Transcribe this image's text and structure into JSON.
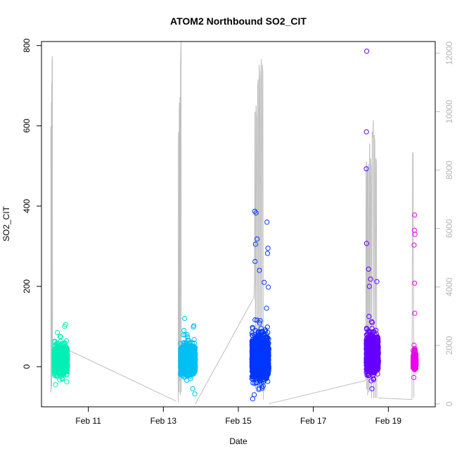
{
  "chart_data": {
    "type": "scatter",
    "title": "ATOM2 Northbound SO2_CIT",
    "xlabel": "Date",
    "ylabel": "SO2_CIT",
    "xlim": [
      "2016-02-09T18:00",
      "2016-02-20T06:00"
    ],
    "ylim": [
      -100,
      810
    ],
    "y2lim": [
      -100,
      12400
    ],
    "x_ticks": [
      {
        "date": "2016-02-11",
        "label": "Feb 11"
      },
      {
        "date": "2016-02-13",
        "label": "Feb 13"
      },
      {
        "date": "2016-02-15",
        "label": "Feb 15"
      },
      {
        "date": "2016-02-17",
        "label": "Feb 17"
      },
      {
        "date": "2016-02-19",
        "label": "Feb 19"
      }
    ],
    "y_ticks": [
      "0",
      "200",
      "400",
      "600",
      "800"
    ],
    "y2_ticks": [
      "0",
      "2000",
      "4000",
      "6000",
      "8000",
      "10000",
      "12000"
    ],
    "grid": false,
    "legend": "none",
    "secondary_series_color": "#bebebe",
    "flights": [
      {
        "start": "2016-02-10T02:10",
        "end": "2016-02-10T10:40",
        "color": "#00f0b5",
        "center": 15,
        "spread": 28,
        "outliers": [
          {
            "t": "2016-02-10T09:30",
            "y": 105
          },
          {
            "t": "2016-02-10T08:50",
            "y": 100
          },
          {
            "t": "2016-02-10T03:00",
            "y": -45
          },
          {
            "t": "2016-02-10T10:10",
            "y": -38
          }
        ]
      },
      {
        "start": "2016-02-13T11:00",
        "end": "2016-02-13T20:30",
        "color": "#00bff3",
        "center": 15,
        "spread": 30,
        "outliers": [
          {
            "t": "2016-02-13T13:40",
            "y": 120
          },
          {
            "t": "2016-02-13T19:30",
            "y": 102
          },
          {
            "t": "2016-02-13T20:10",
            "y": -68
          },
          {
            "t": "2016-02-13T18:50",
            "y": -55
          }
        ]
      },
      {
        "start": "2016-02-15T08:40",
        "end": "2016-02-15T19:30",
        "color": "#0036ff",
        "center": 20,
        "spread": 45,
        "outliers": [
          {
            "t": "2016-02-15T10:30",
            "y": 387
          },
          {
            "t": "2016-02-15T11:20",
            "y": 383
          },
          {
            "t": "2016-02-15T18:20",
            "y": 360
          },
          {
            "t": "2016-02-15T12:00",
            "y": 318
          },
          {
            "t": "2016-02-15T11:00",
            "y": 305
          },
          {
            "t": "2016-02-15T19:00",
            "y": 295
          },
          {
            "t": "2016-02-15T18:40",
            "y": 282
          },
          {
            "t": "2016-02-15T10:40",
            "y": 262
          },
          {
            "t": "2016-02-15T13:30",
            "y": 240
          },
          {
            "t": "2016-02-15T16:30",
            "y": 210
          },
          {
            "t": "2016-02-15T19:10",
            "y": 198
          },
          {
            "t": "2016-02-15T09:10",
            "y": -80
          },
          {
            "t": "2016-02-15T10:10",
            "y": -70
          }
        ]
      },
      {
        "start": "2016-02-18T09:50",
        "end": "2016-02-18T17:40",
        "color": "#6600ff",
        "center": 30,
        "spread": 38,
        "outliers": [
          {
            "t": "2016-02-18T10:10",
            "y": 786
          },
          {
            "t": "2016-02-18T10:00",
            "y": 585
          },
          {
            "t": "2016-02-18T09:55",
            "y": 493
          },
          {
            "t": "2016-02-18T10:05",
            "y": 307
          },
          {
            "t": "2016-02-18T11:20",
            "y": 243
          },
          {
            "t": "2016-02-18T12:40",
            "y": 218
          },
          {
            "t": "2016-02-18T16:40",
            "y": 212
          },
          {
            "t": "2016-02-18T11:50",
            "y": 200
          },
          {
            "t": "2016-02-18T13:30",
            "y": -55
          }
        ]
      },
      {
        "start": "2016-02-19T15:50",
        "end": "2016-02-19T17:50",
        "color": "#ee00ee",
        "center": 15,
        "spread": 18,
        "outliers": [
          {
            "t": "2016-02-19T16:50",
            "y": 378
          },
          {
            "t": "2016-02-19T16:40",
            "y": 340
          },
          {
            "t": "2016-02-19T17:00",
            "y": 330
          },
          {
            "t": "2016-02-19T16:30",
            "y": 303
          },
          {
            "t": "2016-02-19T16:45",
            "y": 208
          },
          {
            "t": "2016-02-19T16:55",
            "y": 133
          },
          {
            "t": "2016-02-19T16:20",
            "y": -27
          }
        ]
      }
    ],
    "altitude_trace": [
      {
        "t": "2016-02-09T23:59",
        "y2": 9500
      },
      {
        "t": "2016-02-10T00:05",
        "y2": 400
      },
      {
        "t": "2016-02-10T00:11",
        "y2": 9200
      },
      {
        "t": "2016-02-10T00:17",
        "y2": 500
      },
      {
        "t": "2016-02-10T00:23",
        "y2": 10300
      },
      {
        "t": "2016-02-10T00:29",
        "y2": 600
      },
      {
        "t": "2016-02-10T00:35",
        "y2": 11000
      },
      {
        "t": "2016-02-10T00:41",
        "y2": 900
      },
      {
        "t": "2016-02-10T00:47",
        "y2": 11800
      },
      {
        "t": "2016-02-10T00:53",
        "y2": 1500
      },
      {
        "t": "2016-02-10T00:59",
        "y2": 11900
      },
      {
        "t": "2016-02-10T01:05",
        "y2": 1900
      },
      {
        "t": "2016-02-13T09:30",
        "y2": 50
      },
      {
        "t": "2016-02-13T09:40",
        "y2": 9100
      },
      {
        "t": "2016-02-13T09:50",
        "y2": 9300
      },
      {
        "t": "2016-02-13T10:00",
        "y2": 400
      },
      {
        "t": "2016-02-13T10:10",
        "y2": 10100
      },
      {
        "t": "2016-02-13T10:20",
        "y2": 10300
      },
      {
        "t": "2016-02-13T10:30",
        "y2": 800
      },
      {
        "t": "2016-02-13T10:40",
        "y2": 10500
      },
      {
        "t": "2016-02-13T10:50",
        "y2": 300
      },
      {
        "t": "2016-02-13T11:00",
        "y2": 11700
      },
      {
        "t": "2016-02-13T11:10",
        "y2": 12100
      },
      {
        "t": "2016-02-13T11:20",
        "y2": 12400
      },
      {
        "t": "2016-02-13T11:30",
        "y2": 400
      },
      {
        "t": "2016-02-15T10:00",
        "y2": 3600
      },
      {
        "t": "2016-02-15T10:20",
        "y2": 4300
      },
      {
        "t": "2016-02-15T10:40",
        "y2": 10000
      },
      {
        "t": "2016-02-15T11:00",
        "y2": 500
      },
      {
        "t": "2016-02-15T11:20",
        "y2": 10200
      },
      {
        "t": "2016-02-15T11:40",
        "y2": 9800
      },
      {
        "t": "2016-02-15T12:00",
        "y2": 600
      },
      {
        "t": "2016-02-15T12:20",
        "y2": 10900
      },
      {
        "t": "2016-02-15T12:40",
        "y2": 11100
      },
      {
        "t": "2016-02-15T13:00",
        "y2": 800
      },
      {
        "t": "2016-02-15T13:20",
        "y2": 11600
      },
      {
        "t": "2016-02-15T13:40",
        "y2": 11200
      },
      {
        "t": "2016-02-15T14:00",
        "y2": 1000
      },
      {
        "t": "2016-02-15T14:20",
        "y2": 11000
      },
      {
        "t": "2016-02-15T14:40",
        "y2": 11800
      },
      {
        "t": "2016-02-15T15:00",
        "y2": 700
      },
      {
        "t": "2016-02-15T15:20",
        "y2": 11600
      },
      {
        "t": "2016-02-15T15:40",
        "y2": 11400
      },
      {
        "t": "2016-02-15T16:00",
        "y2": 150
      },
      {
        "t": "2016-02-18T09:30",
        "y2": 800
      },
      {
        "t": "2016-02-18T09:45",
        "y2": 8100
      },
      {
        "t": "2016-02-18T10:00",
        "y2": 8300
      },
      {
        "t": "2016-02-18T10:15",
        "y2": 500
      },
      {
        "t": "2016-02-18T10:30",
        "y2": 8100
      },
      {
        "t": "2016-02-18T10:45",
        "y2": 300
      },
      {
        "t": "2016-02-18T11:00",
        "y2": 7900
      },
      {
        "t": "2016-02-18T11:15",
        "y2": 8200
      },
      {
        "t": "2016-02-18T11:30",
        "y2": 400
      },
      {
        "t": "2016-02-18T12:00",
        "y2": 8900
      },
      {
        "t": "2016-02-18T12:20",
        "y2": 600
      },
      {
        "t": "2016-02-18T12:40",
        "y2": 8400
      },
      {
        "t": "2016-02-18T13:00",
        "y2": 8100
      },
      {
        "t": "2016-02-18T13:20",
        "y2": 200
      },
      {
        "t": "2016-02-18T13:40",
        "y2": 9300
      },
      {
        "t": "2016-02-18T14:00",
        "y2": 9100
      },
      {
        "t": "2016-02-18T14:20",
        "y2": 9700
      },
      {
        "t": "2016-02-18T14:40",
        "y2": 200
      },
      {
        "t": "2016-02-18T15:00",
        "y2": 9200
      },
      {
        "t": "2016-02-18T15:20",
        "y2": 9000
      },
      {
        "t": "2016-02-18T15:40",
        "y2": 200
      },
      {
        "t": "2016-02-18T16:00",
        "y2": 8400
      },
      {
        "t": "2016-02-18T16:20",
        "y2": 8300
      },
      {
        "t": "2016-02-18T16:40",
        "y2": 200
      },
      {
        "t": "2016-02-19T15:10",
        "y2": 150
      },
      {
        "t": "2016-02-19T15:30",
        "y2": 8600
      },
      {
        "t": "2016-02-19T15:50",
        "y2": 8600
      },
      {
        "t": "2016-02-19T16:20",
        "y2": 200
      }
    ],
    "altitude_connectors": [
      {
        "from": {
          "t": "2016-02-10T09:00",
          "y2": 1900
        },
        "to": {
          "t": "2016-02-13T08:00",
          "y2": 100
        }
      },
      {
        "from": {
          "t": "2016-02-13T20:30",
          "y2": 0
        },
        "to": {
          "t": "2016-02-15T09:30",
          "y2": 3600
        }
      },
      {
        "from": {
          "t": "2016-02-15T19:30",
          "y2": 0
        },
        "to": {
          "t": "2016-02-18T09:30",
          "y2": 800
        }
      },
      {
        "from": {
          "t": "2016-02-18T17:30",
          "y2": 200
        },
        "to": {
          "t": "2016-02-19T15:00",
          "y2": 150
        }
      }
    ]
  }
}
